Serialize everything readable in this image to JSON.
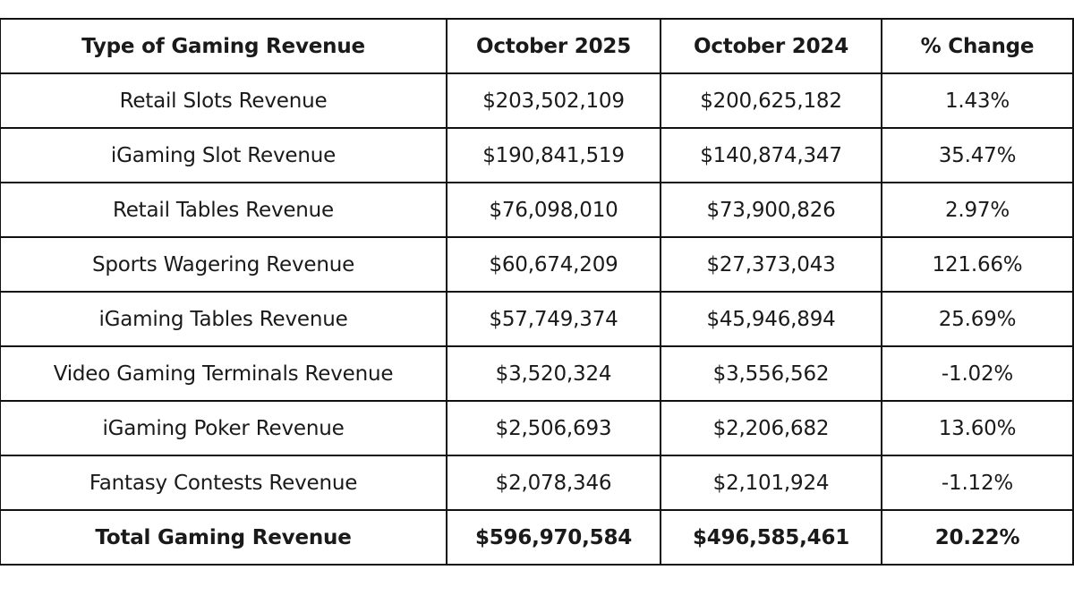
{
  "headers": [
    "Type of Gaming Revenue",
    "October 2025",
    "October 2024",
    "% Change"
  ],
  "rows": [
    [
      "Retail Slots Revenue",
      "$203,502,109",
      "$200,625,182",
      "1.43%"
    ],
    [
      "iGaming Slot Revenue",
      "$190,841,519",
      "$140,874,347",
      "35.47%"
    ],
    [
      "Retail Tables Revenue",
      "$76,098,010",
      "$73,900,826",
      "2.97%"
    ],
    [
      "Sports Wagering Revenue",
      "$60,674,209",
      "$27,373,043",
      "121.66%"
    ],
    [
      "iGaming Tables Revenue",
      "$57,749,374",
      "$45,946,894",
      "25.69%"
    ],
    [
      "Video Gaming Terminals Revenue",
      "$3,520,324",
      "$3,556,562",
      "-1.02%"
    ],
    [
      "iGaming Poker Revenue",
      "$2,506,693",
      "$2,206,682",
      "13.60%"
    ],
    [
      "Fantasy Contests Revenue",
      "$2,078,346",
      "$2,101,924",
      "-1.12%"
    ]
  ],
  "total": [
    "Total Gaming Revenue",
    "$596,970,584",
    "$496,585,461",
    "20.22%"
  ]
}
